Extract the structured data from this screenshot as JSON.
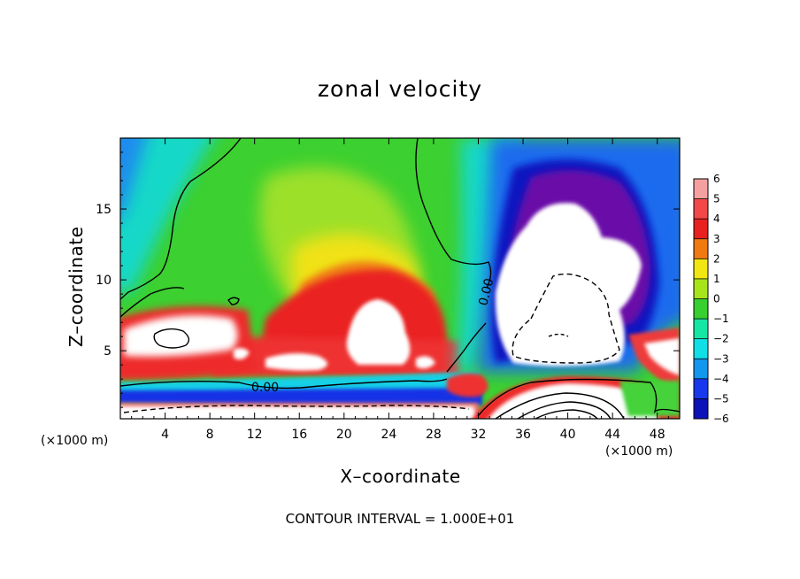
{
  "chart_data": {
    "type": "heatmap",
    "title": "zonal velocity",
    "xlabel": "X–coordinate",
    "ylabel": "Z–coordinate",
    "x_scale_note": "(×1000 m)",
    "y_scale_note": "(×1000 m)",
    "footnote": "CONTOUR INTERVAL = 1.000E+01",
    "xlim": [
      0,
      50
    ],
    "ylim": [
      0.2,
      20
    ],
    "x_ticks": [
      {
        "value": 4,
        "label": "4"
      },
      {
        "value": 8,
        "label": "8"
      },
      {
        "value": 12,
        "label": "12"
      },
      {
        "value": 16,
        "label": "16"
      },
      {
        "value": 20,
        "label": "20"
      },
      {
        "value": 24,
        "label": "24"
      },
      {
        "value": 28,
        "label": "28"
      },
      {
        "value": 32,
        "label": "32"
      },
      {
        "value": 36,
        "label": "36"
      },
      {
        "value": 40,
        "label": "40"
      },
      {
        "value": 44,
        "label": "44"
      },
      {
        "value": 48,
        "label": "48"
      }
    ],
    "y_ticks": [
      {
        "value": 5,
        "label": "5"
      },
      {
        "value": 10,
        "label": "10"
      },
      {
        "value": 15,
        "label": "15"
      }
    ],
    "colorbar": {
      "min": -6,
      "max": 6,
      "levels": [
        {
          "value": 6,
          "label": "6",
          "color": "#f4a0a0"
        },
        {
          "value": 5,
          "label": "5",
          "color": "#f24848"
        },
        {
          "value": 4,
          "label": "4",
          "color": "#e82020"
        },
        {
          "value": 3,
          "label": "3",
          "color": "#f07a12"
        },
        {
          "value": 2,
          "label": "2",
          "color": "#f2e612"
        },
        {
          "value": 1,
          "label": "1",
          "color": "#a8e41a"
        },
        {
          "value": 0,
          "label": "0",
          "color": "#38d030"
        },
        {
          "value": -1,
          "label": "−1",
          "color": "#16e6a4"
        },
        {
          "value": -2,
          "label": "−2",
          "color": "#10e0e6"
        },
        {
          "value": -3,
          "label": "−3",
          "color": "#1296ee"
        },
        {
          "value": -4,
          "label": "−4",
          "color": "#1838ee"
        },
        {
          "value": -5,
          "label": "−5",
          "color": "#0c12b8"
        },
        {
          "value": -6,
          "label": "−6",
          "color": "#6a0ca8"
        }
      ]
    },
    "contour_labels": [
      {
        "text": "0.00",
        "x": 15.7,
        "z": 2.4
      },
      {
        "text": "0.00",
        "x": 32.5,
        "z": 9.9
      }
    ],
    "features": [
      {
        "name": "strong-positive-jet-left",
        "x_range": [
          0,
          12
        ],
        "z_range": [
          3.5,
          7.5
        ],
        "value": "> 6"
      },
      {
        "name": "strong-positive-core-center",
        "x_range": [
          20,
          28
        ],
        "z_range": [
          3.5,
          8.5
        ],
        "value": "> 6"
      },
      {
        "name": "strong-negative-core-right",
        "x_range": [
          33,
          46
        ],
        "z_range": [
          3.5,
          15.5
        ],
        "value": "< -6"
      },
      {
        "name": "positive-near-surface-band",
        "x_range": [
          0,
          32
        ],
        "z_range": [
          0.2,
          1.6
        ],
        "value": "> 6"
      },
      {
        "name": "positive-surface-core-right",
        "x_range": [
          33,
          47
        ],
        "z_range": [
          0.2,
          2.9
        ],
        "value": "> 6"
      }
    ]
  }
}
